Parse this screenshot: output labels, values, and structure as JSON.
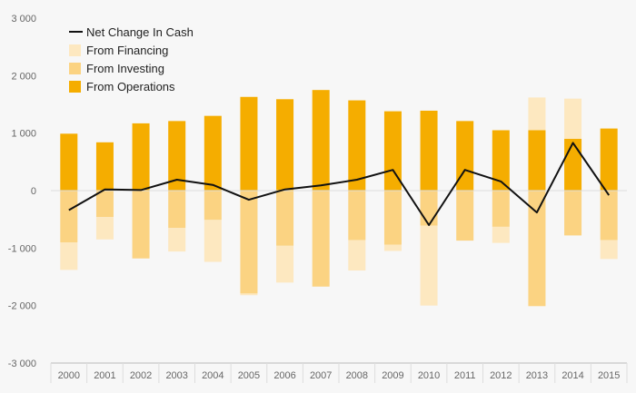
{
  "chart_data": {
    "type": "bar",
    "stacked": true,
    "categories": [
      "2000",
      "2001",
      "2002",
      "2003",
      "2004",
      "2005",
      "2006",
      "2007",
      "2008",
      "2009",
      "2010",
      "2011",
      "2012",
      "2013",
      "2014",
      "2015"
    ],
    "ylim": [
      -3000,
      3000
    ],
    "yticks": [
      3000,
      2000,
      1000,
      0,
      -1000,
      -2000,
      -3000
    ],
    "ytick_labels": [
      "3 000",
      "2 000",
      "1 000",
      "0",
      "-1 000",
      "-2 000",
      "-3 000"
    ],
    "series": [
      {
        "name": "From Operations",
        "color": "#f5ad00",
        "values": [
          990,
          840,
          1170,
          1210,
          1300,
          1630,
          1590,
          1750,
          1570,
          1380,
          1390,
          1210,
          1050,
          1050,
          900,
          1080
        ]
      },
      {
        "name": "From Investing",
        "color": "#fbd382",
        "values": [
          -900,
          -460,
          -1180,
          -650,
          -510,
          -1790,
          -960,
          -1670,
          -860,
          -940,
          -610,
          -870,
          -630,
          -2010,
          -780,
          -860
        ]
      },
      {
        "name": "From Financing",
        "color": "#fde8c0",
        "values": [
          -480,
          -390,
          0,
          -410,
          -730,
          -30,
          -640,
          0,
          -530,
          -110,
          -1390,
          0,
          -280,
          570,
          700,
          -330
        ]
      }
    ],
    "line": {
      "name": "Net Change In Cash",
      "color": "#111111",
      "values": [
        -340,
        20,
        10,
        190,
        100,
        -160,
        20,
        90,
        190,
        360,
        -600,
        360,
        160,
        -380,
        830,
        -80
      ]
    },
    "legend": [
      "Net Change In Cash",
      "From Financing",
      "From Investing",
      "From Operations"
    ],
    "legend_position": "top-left",
    "title": "",
    "xlabel": "",
    "ylabel": ""
  }
}
